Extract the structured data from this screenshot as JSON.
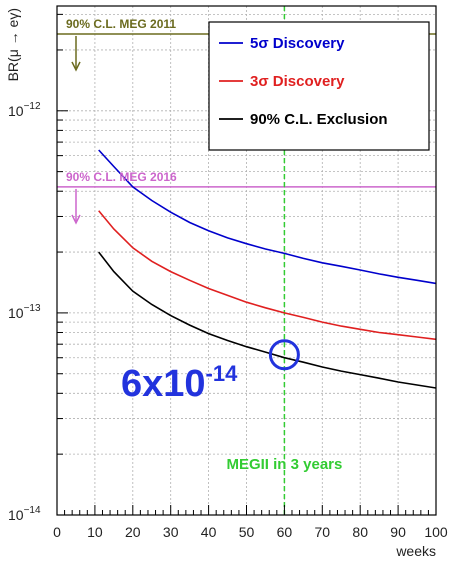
{
  "chart_data": {
    "type": "line",
    "xlabel": "weeks",
    "ylabel": "BR(μ → eγ)",
    "xlim": [
      0,
      100
    ],
    "ylim": [
      1e-14,
      3.3e-12
    ],
    "yscale": "log",
    "grid": true,
    "x_ticks": [
      "0",
      "10",
      "20",
      "30",
      "40",
      "50",
      "60",
      "70",
      "80",
      "90",
      "100"
    ],
    "y_tick_labels": [
      {
        "value": 1e-12,
        "mantissa": "10",
        "exp": "−12"
      },
      {
        "value": 1e-13,
        "mantissa": "10",
        "exp": "−13"
      },
      {
        "value": 1e-14,
        "mantissa": "10",
        "exp": "−14"
      }
    ],
    "legend_position": "top-right",
    "series": [
      {
        "name": "5σ Discovery",
        "color": "#0000cc",
        "x": [
          11,
          15,
          20,
          25,
          30,
          35,
          40,
          45,
          50,
          55,
          60,
          65,
          70,
          75,
          80,
          85,
          90,
          95,
          100
        ],
        "y": [
          6.4e-13,
          5.3e-13,
          4.2e-13,
          3.6e-13,
          3.15e-13,
          2.8e-13,
          2.55e-13,
          2.35e-13,
          2.2e-13,
          2.07e-13,
          1.97e-13,
          1.86e-13,
          1.77e-13,
          1.7e-13,
          1.63e-13,
          1.56e-13,
          1.5e-13,
          1.45e-13,
          1.4e-13
        ]
      },
      {
        "name": "3σ Discovery",
        "color": "#e02020",
        "x": [
          11,
          15,
          20,
          25,
          30,
          35,
          40,
          45,
          50,
          55,
          60,
          65,
          70,
          75,
          80,
          85,
          90,
          95,
          100
        ],
        "y": [
          3.2e-13,
          2.6e-13,
          2.1e-13,
          1.8e-13,
          1.6e-13,
          1.45e-13,
          1.32e-13,
          1.22e-13,
          1.13e-13,
          1.06e-13,
          1e-13,
          9.5e-14,
          9e-14,
          8.6e-14,
          8.3e-14,
          8e-14,
          7.8e-14,
          7.6e-14,
          7.4e-14
        ]
      },
      {
        "name": "90% C.L. Exclusion",
        "color": "#000000",
        "x": [
          11,
          15,
          20,
          25,
          30,
          35,
          40,
          45,
          50,
          55,
          60,
          65,
          70,
          75,
          80,
          85,
          90,
          95,
          100
        ],
        "y": [
          2e-13,
          1.6e-13,
          1.28e-13,
          1.1e-13,
          9.7e-14,
          8.7e-14,
          7.9e-14,
          7.3e-14,
          6.8e-14,
          6.4e-14,
          6e-14,
          5.7e-14,
          5.4e-14,
          5.15e-14,
          4.95e-14,
          4.75e-14,
          4.55e-14,
          4.4e-14,
          4.25e-14
        ]
      }
    ],
    "reference_lines": [
      {
        "label": "90% C.L. MEG 2011",
        "value": 2.4e-12,
        "color": "#6b6b1f"
      },
      {
        "label": "90% C.L. MEG 2016",
        "value": 4.2e-13,
        "color": "#cc66cc"
      }
    ],
    "vertical_marker": {
      "x": 60,
      "label": "MEGII in 3 years",
      "color": "#33cc33"
    },
    "callout": {
      "mantissa": "6x10",
      "exp": "-14",
      "x": 60,
      "y": 6e-14,
      "color": "#2233dd"
    }
  }
}
